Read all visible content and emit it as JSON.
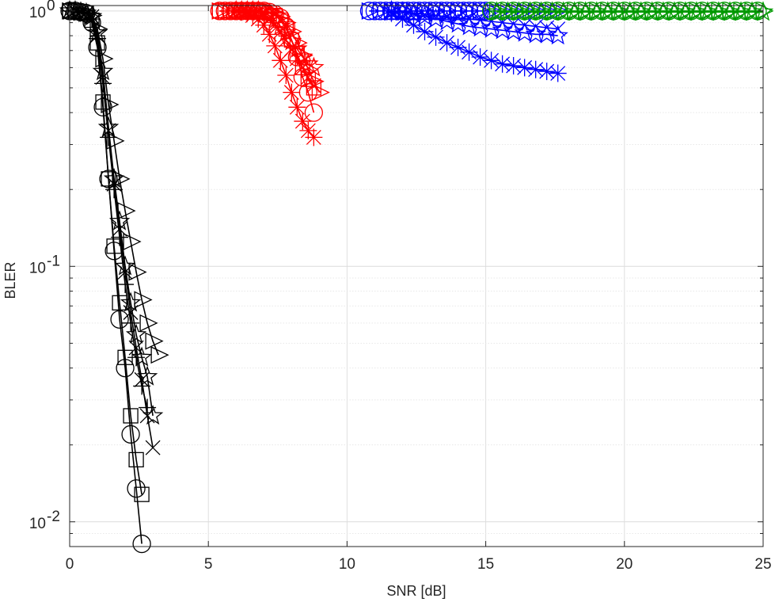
{
  "chart_data": {
    "type": "line",
    "title": "",
    "xlabel": "SNR [dB]",
    "ylabel": "BLER",
    "xlim": [
      0,
      25
    ],
    "ylim": [
      0.008,
      1.05
    ],
    "yscale": "log",
    "grid": true,
    "minor_grid": true,
    "legend": "none",
    "x_ticks": [
      "0",
      "5",
      "10",
      "15",
      "20",
      "25"
    ],
    "y_ticks": [
      {
        "base": "10",
        "exp": "0"
      },
      {
        "base": "10",
        "exp": "-1"
      },
      {
        "base": "10",
        "exp": "-2"
      }
    ],
    "colors": {
      "black": "#000000",
      "red": "#ff0000",
      "blue": "#0000ff",
      "green": "#009900"
    },
    "series": [
      {
        "group": "black",
        "marker": "circle",
        "x": [
          0.0,
          0.2,
          0.4,
          0.6,
          0.8,
          1.0,
          1.2,
          1.4,
          1.6,
          1.8,
          2.0,
          2.2,
          2.4,
          2.6
        ],
        "y": [
          1.0,
          1.0,
          0.99,
          0.98,
          0.9,
          0.72,
          0.42,
          0.22,
          0.115,
          0.062,
          0.04,
          0.022,
          0.0135,
          0.0082
        ]
      },
      {
        "group": "black",
        "marker": "square",
        "x": [
          0.0,
          0.2,
          0.4,
          0.6,
          0.8,
          1.0,
          1.2,
          1.4,
          1.6,
          1.8,
          2.0,
          2.2,
          2.4,
          2.6
        ],
        "y": [
          1.0,
          1.0,
          0.99,
          0.98,
          0.92,
          0.75,
          0.44,
          0.22,
          0.12,
          0.072,
          0.044,
          0.026,
          0.0175,
          0.0128
        ]
      },
      {
        "group": "black",
        "marker": "plus",
        "x": [
          0.0,
          0.2,
          0.4,
          0.6,
          0.8,
          1.0,
          1.2,
          1.4,
          1.6,
          1.8,
          2.0,
          2.2,
          2.4,
          2.6,
          2.8
        ],
        "y": [
          1.0,
          1.0,
          0.99,
          0.98,
          0.93,
          0.78,
          0.52,
          0.32,
          0.2,
          0.13,
          0.085,
          0.06,
          0.044,
          0.034,
          0.028
        ]
      },
      {
        "group": "black",
        "marker": "x",
        "x": [
          0.0,
          0.2,
          0.4,
          0.6,
          0.8,
          1.0,
          1.2,
          1.4,
          1.6,
          1.8,
          2.0,
          2.2,
          2.4,
          2.6,
          2.8,
          3.0
        ],
        "y": [
          1.0,
          1.0,
          0.99,
          0.98,
          0.95,
          0.8,
          0.55,
          0.34,
          0.21,
          0.14,
          0.095,
          0.066,
          0.048,
          0.036,
          0.026,
          0.0195
        ]
      },
      {
        "group": "black",
        "marker": "star",
        "x": [
          0.0,
          0.2,
          0.4,
          0.6,
          0.8,
          1.0,
          1.2,
          1.4,
          1.6,
          1.8,
          2.0,
          2.2,
          2.4,
          2.6,
          2.8,
          3.0
        ],
        "y": [
          1.0,
          1.0,
          0.99,
          0.98,
          0.95,
          0.82,
          0.58,
          0.35,
          0.22,
          0.15,
          0.1,
          0.072,
          0.054,
          0.044,
          0.037,
          0.026
        ]
      },
      {
        "group": "black",
        "marker": "triangle-right",
        "x": [
          0.0,
          0.2,
          0.4,
          0.6,
          0.8,
          1.0,
          1.2,
          1.4,
          1.6,
          1.8,
          2.0,
          2.2,
          2.4,
          2.6,
          2.8,
          3.0,
          3.2
        ],
        "y": [
          1.0,
          1.0,
          0.99,
          0.98,
          0.96,
          0.85,
          0.65,
          0.43,
          0.31,
          0.22,
          0.165,
          0.125,
          0.095,
          0.074,
          0.06,
          0.051,
          0.045
        ]
      },
      {
        "group": "red",
        "marker": "circle",
        "x": [
          5.4,
          5.6,
          5.8,
          6.0,
          6.2,
          6.4,
          6.6,
          6.8,
          7.0,
          7.2,
          7.4,
          7.6,
          7.8,
          8.0,
          8.2,
          8.4,
          8.6,
          8.8
        ],
        "y": [
          1.0,
          1.0,
          1.0,
          1.0,
          1.0,
          1.0,
          1.0,
          1.0,
          1.0,
          0.99,
          0.97,
          0.94,
          0.87,
          0.77,
          0.66,
          0.55,
          0.48,
          0.4
        ]
      },
      {
        "group": "red",
        "marker": "square",
        "x": [
          5.4,
          5.6,
          5.8,
          6.0,
          6.2,
          6.4,
          6.6,
          6.8,
          7.0,
          7.2,
          7.4,
          7.6,
          7.8,
          8.0,
          8.2,
          8.4,
          8.6,
          8.8
        ],
        "y": [
          1.0,
          1.0,
          1.0,
          1.0,
          1.0,
          1.0,
          1.0,
          1.0,
          0.99,
          0.98,
          0.96,
          0.92,
          0.85,
          0.77,
          0.68,
          0.6,
          0.54,
          0.5
        ]
      },
      {
        "group": "red",
        "marker": "triangle-right",
        "x": [
          5.4,
          5.6,
          5.8,
          6.0,
          6.2,
          6.4,
          6.6,
          6.8,
          7.0,
          7.2,
          7.4,
          7.6,
          7.8,
          8.0,
          8.2,
          8.4,
          8.6,
          8.8,
          9.0
        ],
        "y": [
          1.0,
          1.0,
          1.0,
          1.0,
          1.0,
          1.0,
          1.0,
          1.0,
          1.0,
          0.99,
          0.98,
          0.95,
          0.9,
          0.83,
          0.75,
          0.67,
          0.59,
          0.53,
          0.48
        ]
      },
      {
        "group": "red",
        "marker": "x",
        "x": [
          6.0,
          6.2,
          6.4,
          6.6,
          6.8,
          7.0,
          7.2,
          7.4,
          7.6,
          7.8,
          8.0,
          8.2,
          8.4,
          8.6,
          8.8
        ],
        "y": [
          1.0,
          1.0,
          1.0,
          1.0,
          1.0,
          0.97,
          0.93,
          0.88,
          0.83,
          0.77,
          0.71,
          0.65,
          0.6,
          0.55,
          0.51
        ]
      },
      {
        "group": "red",
        "marker": "star",
        "x": [
          6.0,
          6.2,
          6.4,
          6.6,
          6.8,
          7.0,
          7.2,
          7.4,
          7.6,
          7.8,
          8.0,
          8.2,
          8.4,
          8.6,
          8.8
        ],
        "y": [
          1.0,
          1.0,
          1.0,
          1.0,
          1.0,
          0.98,
          0.96,
          0.92,
          0.87,
          0.82,
          0.76,
          0.71,
          0.66,
          0.62,
          0.6
        ]
      },
      {
        "group": "red",
        "marker": "asterisk",
        "x": [
          6.0,
          6.2,
          6.4,
          6.6,
          6.8,
          7.0,
          7.2,
          7.4,
          7.6,
          7.8,
          8.0,
          8.2,
          8.4,
          8.6,
          8.8
        ],
        "y": [
          1.0,
          0.99,
          0.98,
          0.96,
          0.93,
          0.88,
          0.81,
          0.73,
          0.64,
          0.56,
          0.48,
          0.42,
          0.37,
          0.34,
          0.32
        ]
      },
      {
        "group": "blue",
        "marker": "circle",
        "x": [
          10.8,
          11.0,
          11.2,
          11.4,
          11.6,
          11.8,
          12.0,
          12.2,
          12.4,
          12.6,
          12.8,
          13.0,
          13.2,
          13.4,
          13.6,
          13.8,
          14.0,
          14.2,
          14.4,
          14.6,
          14.8,
          15.0
        ],
        "y": [
          1.0,
          1.0,
          1.0,
          1.0,
          1.0,
          1.0,
          1.0,
          1.0,
          1.0,
          1.0,
          1.0,
          1.0,
          1.0,
          1.0,
          1.0,
          1.0,
          1.0,
          1.0,
          1.0,
          1.0,
          1.0,
          1.0
        ]
      },
      {
        "group": "blue",
        "marker": "triangle-right",
        "x": [
          10.8,
          11.2,
          11.6,
          12.0,
          12.4,
          12.8,
          13.2,
          13.6,
          14.0,
          14.4,
          14.8,
          15.2,
          15.6,
          16.0,
          16.4,
          16.8,
          17.2,
          17.6
        ],
        "y": [
          1.0,
          1.0,
          1.0,
          1.0,
          1.0,
          1.0,
          1.0,
          1.0,
          1.0,
          1.0,
          1.0,
          1.0,
          1.0,
          1.0,
          1.0,
          1.0,
          1.0,
          1.0
        ]
      },
      {
        "group": "blue",
        "marker": "x",
        "x": [
          11.6,
          12.0,
          12.4,
          12.8,
          13.2,
          13.6,
          14.0,
          14.4,
          14.8,
          15.2,
          15.6,
          16.0,
          16.4,
          16.8,
          17.2,
          17.6
        ],
        "y": [
          1.0,
          0.99,
          0.98,
          0.97,
          0.96,
          0.95,
          0.94,
          0.93,
          0.92,
          0.91,
          0.9,
          0.89,
          0.88,
          0.87,
          0.86,
          0.85
        ]
      },
      {
        "group": "blue",
        "marker": "star",
        "x": [
          11.6,
          12.0,
          12.4,
          12.8,
          13.2,
          13.6,
          14.0,
          14.4,
          14.8,
          15.2,
          15.6,
          16.0,
          16.4,
          16.8,
          17.2,
          17.6
        ],
        "y": [
          1.0,
          0.99,
          0.97,
          0.95,
          0.93,
          0.91,
          0.89,
          0.87,
          0.86,
          0.85,
          0.84,
          0.83,
          0.82,
          0.81,
          0.81,
          0.8
        ]
      },
      {
        "group": "blue",
        "marker": "asterisk",
        "x": [
          11.6,
          12.0,
          12.4,
          12.8,
          13.2,
          13.6,
          14.0,
          14.4,
          14.8,
          15.2,
          15.6,
          16.0,
          16.4,
          16.8,
          17.2,
          17.6
        ],
        "y": [
          0.98,
          0.93,
          0.88,
          0.83,
          0.79,
          0.75,
          0.72,
          0.69,
          0.66,
          0.64,
          0.62,
          0.61,
          0.6,
          0.59,
          0.58,
          0.57
        ]
      },
      {
        "group": "green",
        "marker": "circle",
        "x": [
          15.2,
          15.6,
          16.0,
          16.4,
          16.8,
          17.2,
          17.6,
          18.0,
          18.4,
          18.8,
          19.2,
          19.6,
          20.0,
          20.4,
          20.8,
          21.2,
          21.6,
          22.0,
          22.4,
          22.8,
          23.2,
          23.6,
          24.0,
          24.4,
          24.8
        ],
        "y": [
          1.0,
          1.0,
          1.0,
          1.0,
          1.0,
          1.0,
          1.0,
          1.0,
          1.0,
          1.0,
          1.0,
          1.0,
          1.0,
          1.0,
          1.0,
          1.0,
          1.0,
          1.0,
          1.0,
          1.0,
          1.0,
          1.0,
          1.0,
          1.0,
          1.0
        ]
      },
      {
        "group": "green",
        "marker": "triangle-right",
        "x": [
          15.4,
          15.8,
          16.2,
          16.6,
          17.0,
          17.4,
          17.8,
          18.2,
          18.6,
          19.0,
          19.4,
          19.8,
          20.2,
          20.6,
          21.0,
          21.4,
          21.8,
          22.2,
          22.6,
          23.0,
          23.4,
          23.8,
          24.2,
          24.6,
          25.0
        ],
        "y": [
          1.0,
          1.0,
          1.0,
          1.0,
          1.0,
          1.0,
          1.0,
          1.0,
          1.0,
          1.0,
          1.0,
          1.0,
          1.0,
          1.0,
          1.0,
          1.0,
          1.0,
          1.0,
          1.0,
          1.0,
          1.0,
          1.0,
          1.0,
          1.0,
          1.0
        ]
      },
      {
        "group": "green",
        "marker": "star",
        "x": [
          15.4,
          15.8,
          16.2,
          16.6,
          17.0,
          17.4,
          17.8,
          18.2,
          18.6,
          19.0,
          19.4,
          19.8,
          20.2,
          20.6,
          21.0,
          21.4,
          21.8,
          22.2,
          22.6,
          23.0,
          23.4,
          23.8,
          24.2,
          24.6,
          25.0
        ],
        "y": [
          0.99,
          0.99,
          0.99,
          0.99,
          0.99,
          0.99,
          0.99,
          0.99,
          0.99,
          0.99,
          0.99,
          0.99,
          0.99,
          0.99,
          0.99,
          0.99,
          0.99,
          0.99,
          0.99,
          0.99,
          0.99,
          0.99,
          0.99,
          0.99,
          0.99
        ]
      }
    ]
  }
}
